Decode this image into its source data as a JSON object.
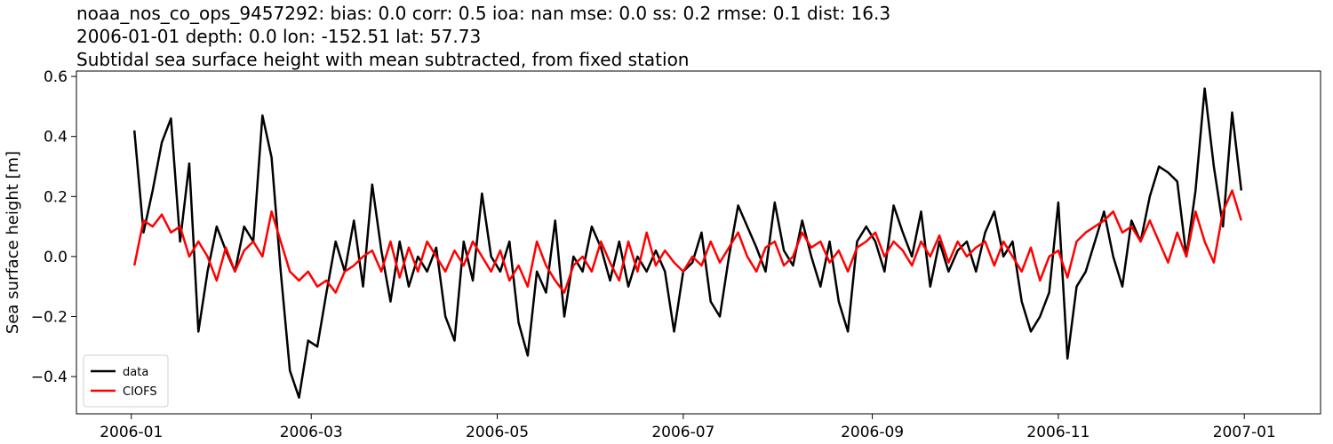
{
  "chart_data": {
    "type": "line",
    "title": [
      "noaa_nos_co_ops_9457292: bias: 0.0  corr: 0.5  ioa: nan  mse: 0.0  ss: 0.2  rmse: 0.1  dist: 16.3",
      "2006-01-01 depth: 0.0 lon: -152.51 lat: 57.73",
      "Subtidal sea surface height with mean subtracted, from fixed station"
    ],
    "ylabel": "Sea surface height [m]",
    "x": [
      1,
      4,
      7,
      10,
      13,
      16,
      19,
      22,
      25,
      28,
      31,
      34,
      37,
      40,
      43,
      46,
      49,
      52,
      55,
      58,
      61,
      64,
      67,
      70,
      73,
      76,
      79,
      82,
      85,
      88,
      91,
      94,
      97,
      100,
      103,
      106,
      109,
      112,
      115,
      118,
      121,
      124,
      127,
      130,
      133,
      136,
      139,
      142,
      145,
      148,
      151,
      154,
      157,
      160,
      163,
      166,
      169,
      172,
      175,
      178,
      181,
      184,
      187,
      190,
      193,
      196,
      199,
      202,
      205,
      208,
      211,
      214,
      217,
      220,
      223,
      226,
      229,
      232,
      235,
      238,
      241,
      244,
      247,
      250,
      253,
      256,
      259,
      262,
      265,
      268,
      271,
      274,
      277,
      280,
      283,
      286,
      289,
      292,
      295,
      298,
      301,
      304,
      307,
      310,
      313,
      316,
      319,
      322,
      325,
      328,
      331,
      334,
      337,
      340,
      343,
      346,
      349,
      352,
      355,
      358,
      361,
      364
    ],
    "series": [
      {
        "name": "data",
        "color": "#000000",
        "values": [
          0.42,
          0.08,
          0.22,
          0.38,
          0.46,
          0.05,
          0.31,
          -0.25,
          -0.05,
          0.1,
          0.02,
          -0.05,
          0.1,
          0.05,
          0.47,
          0.33,
          -0.05,
          -0.38,
          -0.47,
          -0.28,
          -0.3,
          -0.12,
          0.05,
          -0.05,
          0.12,
          -0.1,
          0.24,
          0.02,
          -0.15,
          0.05,
          -0.1,
          0.0,
          -0.05,
          0.03,
          -0.2,
          -0.28,
          0.05,
          -0.08,
          0.21,
          0.0,
          -0.05,
          0.05,
          -0.22,
          -0.33,
          -0.05,
          -0.12,
          0.12,
          -0.2,
          0.0,
          -0.05,
          0.1,
          0.03,
          -0.08,
          0.05,
          -0.1,
          0.0,
          -0.05,
          0.02,
          -0.05,
          -0.25,
          -0.05,
          -0.02,
          0.08,
          -0.15,
          -0.2,
          0.0,
          0.17,
          0.1,
          0.03,
          -0.05,
          0.18,
          0.02,
          -0.03,
          0.12,
          0.0,
          -0.1,
          0.05,
          -0.15,
          -0.25,
          0.05,
          0.1,
          0.05,
          -0.05,
          0.17,
          0.08,
          0.0,
          0.15,
          -0.1,
          0.05,
          -0.05,
          0.02,
          0.05,
          -0.05,
          0.08,
          0.15,
          0.0,
          0.05,
          -0.15,
          -0.25,
          -0.2,
          -0.12,
          0.18,
          -0.34,
          -0.1,
          -0.05,
          0.05,
          0.15,
          0.0,
          -0.1,
          0.12,
          0.05,
          0.2,
          0.3,
          0.28,
          0.25,
          0.0,
          0.22,
          0.56,
          0.3,
          0.1,
          0.48,
          0.22
        ]
      },
      {
        "name": "CIOFS",
        "color": "#ff0000",
        "values": [
          -0.03,
          0.12,
          0.1,
          0.14,
          0.08,
          0.1,
          0.0,
          0.05,
          0.0,
          -0.08,
          0.03,
          -0.05,
          0.02,
          0.05,
          0.0,
          0.15,
          0.05,
          -0.05,
          -0.08,
          -0.05,
          -0.1,
          -0.08,
          -0.12,
          -0.05,
          -0.03,
          0.0,
          0.02,
          -0.05,
          0.05,
          -0.07,
          0.03,
          -0.05,
          0.05,
          0.0,
          -0.05,
          0.02,
          -0.03,
          0.05,
          0.0,
          -0.05,
          0.02,
          -0.08,
          -0.03,
          -0.1,
          0.05,
          -0.03,
          -0.08,
          -0.12,
          -0.03,
          0.0,
          -0.05,
          0.05,
          -0.02,
          -0.08,
          0.05,
          -0.05,
          0.08,
          -0.03,
          0.02,
          -0.02,
          -0.05,
          0.0,
          -0.03,
          0.05,
          -0.02,
          0.03,
          0.08,
          0.0,
          -0.05,
          0.03,
          0.05,
          -0.03,
          0.0,
          0.08,
          0.03,
          0.05,
          -0.02,
          0.02,
          -0.05,
          0.03,
          0.05,
          0.08,
          0.0,
          0.05,
          0.02,
          -0.03,
          0.05,
          0.0,
          0.07,
          -0.02,
          0.05,
          0.0,
          0.03,
          0.05,
          -0.03,
          0.05,
          0.0,
          -0.05,
          0.03,
          -0.08,
          0.0,
          0.02,
          -0.07,
          0.05,
          0.08,
          0.1,
          0.12,
          0.15,
          0.08,
          0.1,
          0.05,
          0.12,
          0.05,
          -0.02,
          0.08,
          0.0,
          0.15,
          0.05,
          -0.02,
          0.15,
          0.22,
          0.12
        ]
      }
    ],
    "xlim": [
      -18,
      390
    ],
    "xticks": [
      {
        "value": 0,
        "label": "2006-01"
      },
      {
        "value": 59,
        "label": "2006-03"
      },
      {
        "value": 120,
        "label": "2006-05"
      },
      {
        "value": 181,
        "label": "2006-07"
      },
      {
        "value": 243,
        "label": "2006-09"
      },
      {
        "value": 304,
        "label": "2006-11"
      },
      {
        "value": 365,
        "label": "2007-01"
      }
    ],
    "ylim": [
      -0.524,
      0.618
    ],
    "yticks": [
      {
        "value": -0.4,
        "label": "−0.4"
      },
      {
        "value": -0.2,
        "label": "−0.2"
      },
      {
        "value": 0,
        "label": "0.0"
      },
      0.2,
      0.4,
      0.6
    ],
    "grid": false,
    "legend": "lower left"
  }
}
